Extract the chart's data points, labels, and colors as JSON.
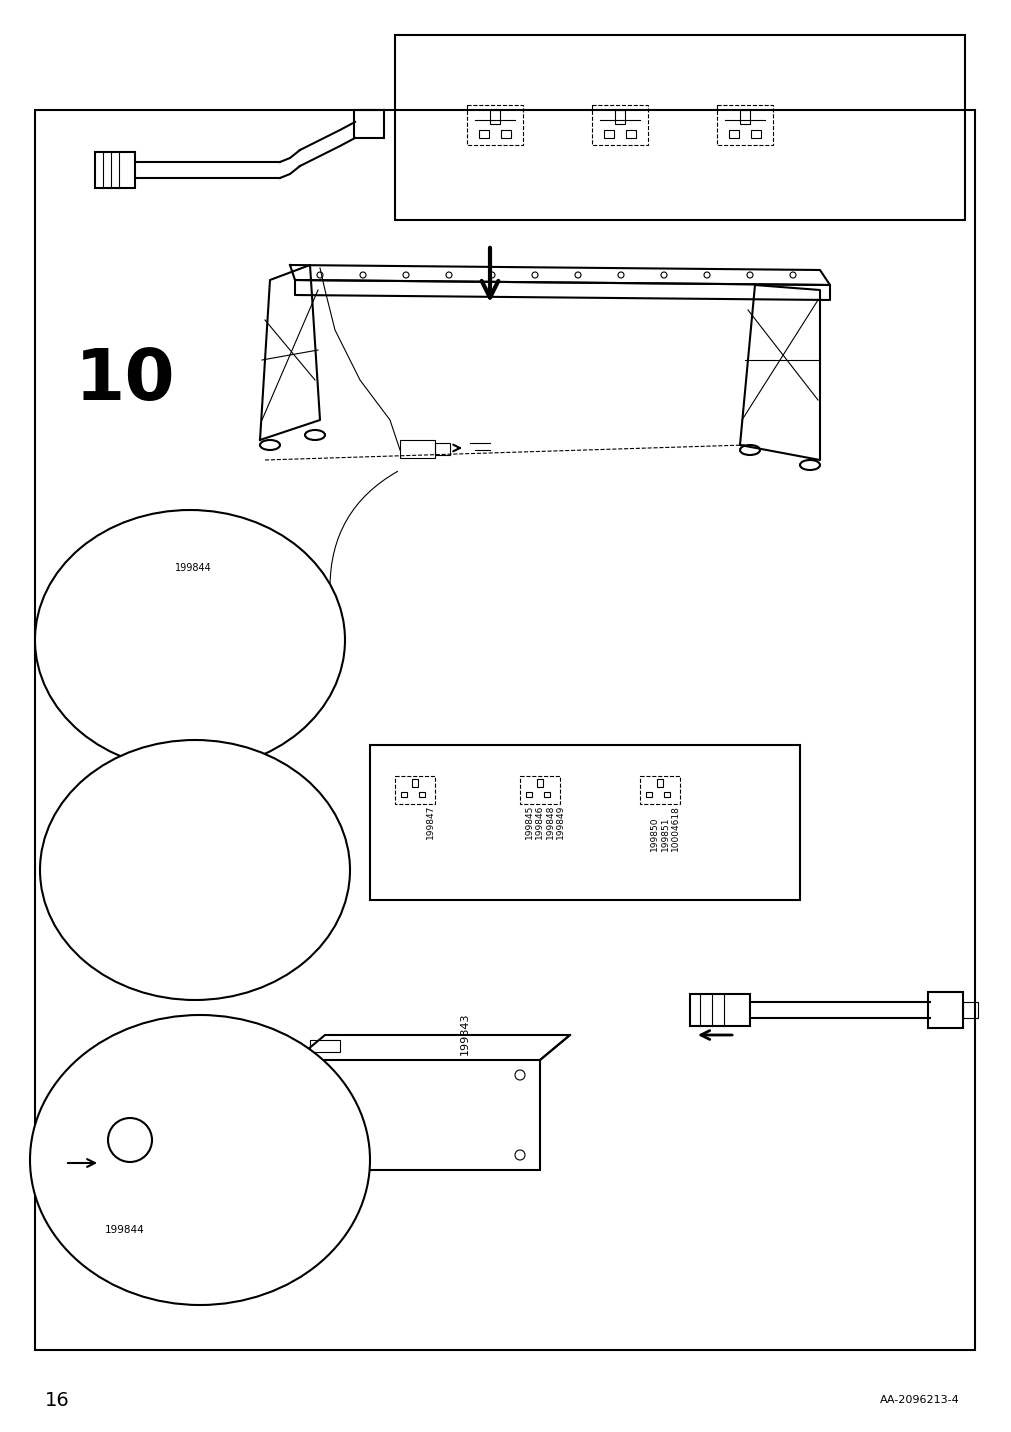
{
  "page_number": "16",
  "doc_id": "AA-2096213-4",
  "step_number": "10",
  "bg_color": "#ffffff",
  "border_color": "#000000",
  "line_color": "#000000",
  "text_color": "#000000",
  "part_ids": {
    "power_adapter": "199843",
    "connector1": "199844",
    "plug_codes": [
      "199847",
      "199845",
      "199846",
      "199848",
      "199849",
      "199850",
      "199851",
      "10004618"
    ]
  },
  "figsize": [
    10.12,
    14.32
  ],
  "dpi": 100
}
